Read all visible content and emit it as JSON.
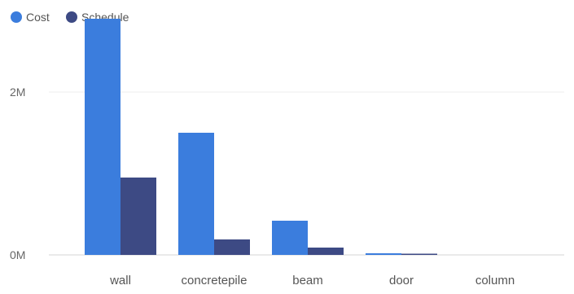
{
  "chart_data": {
    "type": "bar",
    "categories": [
      "wall",
      "concretepile",
      "beam",
      "door",
      "column"
    ],
    "series": [
      {
        "name": "Cost",
        "color": "#3b7ddd",
        "values": [
          2900000,
          1500000,
          420000,
          20000,
          0
        ]
      },
      {
        "name": "Schedule",
        "color": "#3d4a84",
        "values": [
          950000,
          190000,
          90000,
          15000,
          0
        ]
      }
    ],
    "y_ticks": [
      {
        "value": 0,
        "label": "0M"
      },
      {
        "value": 2000000,
        "label": "2M"
      }
    ],
    "ylim": [
      0,
      3000000
    ],
    "grid": true,
    "legend_position": "top-left",
    "title": "",
    "xlabel": "",
    "ylabel": ""
  }
}
